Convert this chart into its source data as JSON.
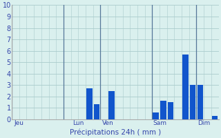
{
  "title": "Précipitations 24h ( mm )",
  "xlabel": "Précipitations 24h ( mm )",
  "background_color": "#daf0ee",
  "bar_color": "#1155cc",
  "grid_color": "#aacccc",
  "vline_color": "#557799",
  "tick_color": "#3344aa",
  "spine_color": "#aaaaaa",
  "ylim": [
    0,
    10
  ],
  "yticks": [
    0,
    1,
    2,
    3,
    4,
    5,
    6,
    7,
    8,
    9,
    10
  ],
  "day_labels": [
    "Jeu",
    "Lun",
    "Ven",
    "Sam",
    "Dim"
  ],
  "day_tick_positions": [
    0.5,
    8.5,
    12.5,
    19.5,
    25.5
  ],
  "vline_positions": [
    0,
    7,
    12,
    19,
    25
  ],
  "n_bars": 28,
  "bar_values": [
    0,
    0,
    0,
    0,
    0,
    0,
    0,
    0,
    0,
    0,
    2.7,
    1.3,
    0,
    2.5,
    0,
    0,
    0,
    0,
    0,
    0.6,
    1.6,
    1.5,
    0,
    5.7,
    3.0,
    3.0,
    0,
    0.3
  ],
  "bar_width": 0.8,
  "figsize": [
    3.2,
    2.0
  ],
  "dpi": 100,
  "xlabel_fontsize": 7.5,
  "ytick_fontsize": 7,
  "xtick_fontsize": 6.5
}
